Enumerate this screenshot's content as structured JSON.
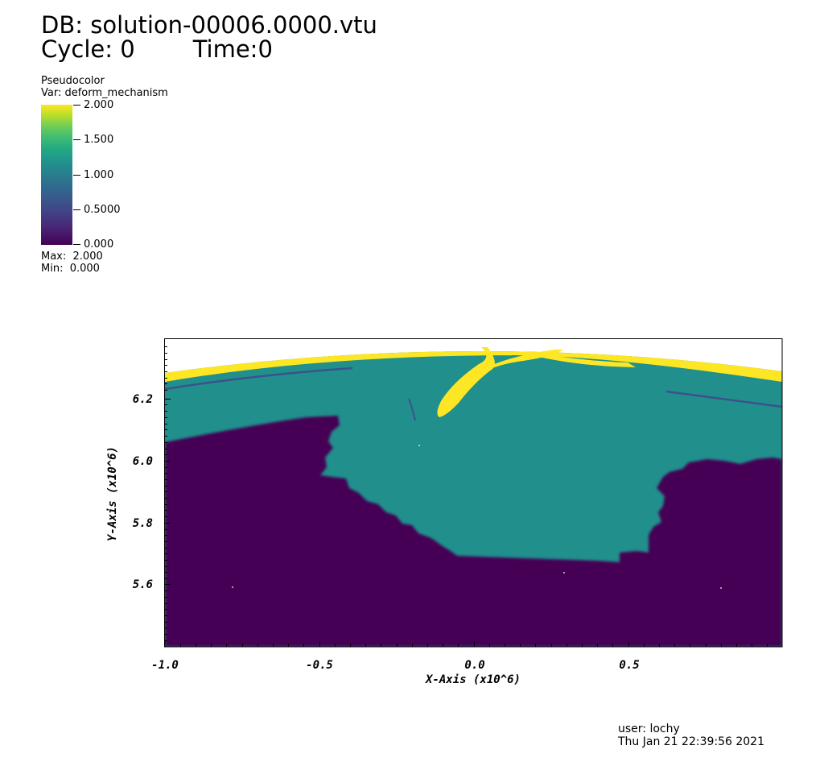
{
  "header": {
    "db_label": "DB: solution-00006.0000.vtu",
    "cycle_label": "Cycle: 0",
    "time_label": "Time:0"
  },
  "legend": {
    "plot_type": "Pseudocolor",
    "variable": "Var: deform_mechanism",
    "ticks": [
      "2.000",
      "1.500",
      "1.000",
      "0.5000",
      "0.000"
    ],
    "max_label": "Max:  2.000",
    "min_label": "Min:  0.000",
    "colormap_stops": [
      "#440154",
      "#3b528b",
      "#21908d",
      "#5ec962",
      "#fde725"
    ]
  },
  "plot": {
    "xaxis_title": "X-Axis (x10^6)",
    "yaxis_title": "Y-Axis (x10^6)",
    "x_ticks": [
      "-1.0",
      "-0.5",
      "0.0",
      "0.5"
    ],
    "y_ticks": [
      "6.2",
      "6.0",
      "5.8",
      "5.6"
    ],
    "x_range": [
      -1.0,
      1.0
    ],
    "y_range": [
      5.4,
      6.4
    ],
    "region_colors": {
      "value_0": "#440154",
      "value_1": "#21908d",
      "value_2": "#fde725",
      "boundary": "#3b528b"
    }
  },
  "footer": {
    "user": "user: lochy",
    "timestamp": "Thu Jan 21 22:39:56 2021"
  }
}
